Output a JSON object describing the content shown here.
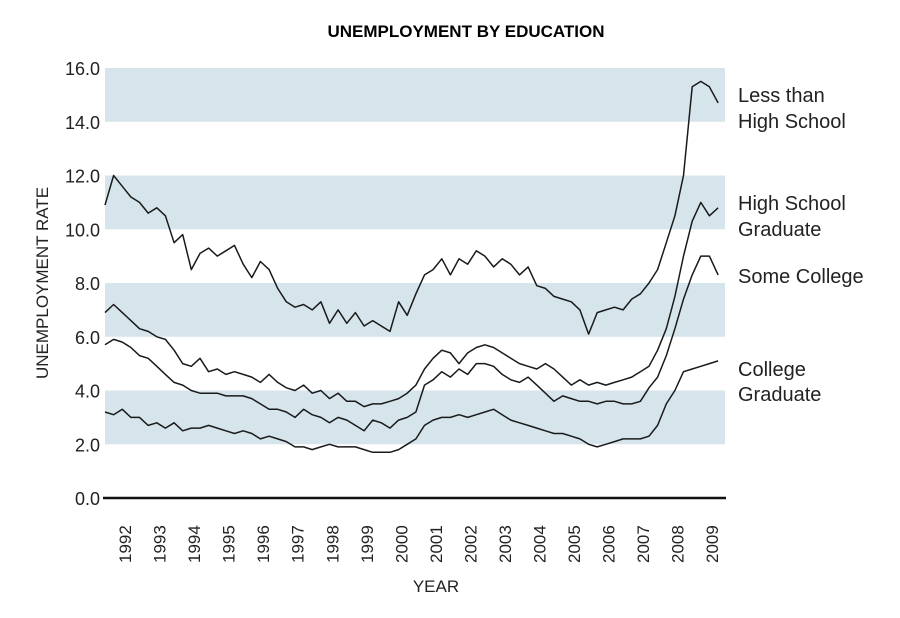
{
  "chart_data": {
    "type": "line",
    "title": "UNEMPLOYMENT BY EDUCATION",
    "xlabel": "YEAR",
    "ylabel": "UNEMPLOYMENT RATE",
    "ylim": [
      0,
      16
    ],
    "yticks": [
      "0.0",
      "2.0",
      "4.0",
      "6.0",
      "8.0",
      "10.0",
      "12.0",
      "14.0",
      "16.0"
    ],
    "xticks": [
      "1992",
      "1993",
      "1994",
      "1995",
      "1996",
      "1997",
      "1998",
      "1999",
      "2000",
      "2001",
      "2002",
      "2003",
      "2004",
      "2005",
      "2006",
      "2007",
      "2008",
      "2009"
    ],
    "bands": [
      [
        2,
        4
      ],
      [
        6,
        8
      ],
      [
        10,
        12
      ],
      [
        14,
        16
      ]
    ],
    "band_color": "#d6e4ec",
    "line_color": "#1a1a1a",
    "x_start": 1992.0,
    "x_step": 0.25,
    "series": [
      {
        "name": "Less than High School",
        "label_lines": [
          "Less than",
          "High School"
        ],
        "values": [
          10.9,
          12.0,
          11.6,
          11.2,
          11.0,
          10.6,
          10.8,
          10.5,
          9.5,
          9.8,
          8.5,
          9.1,
          9.3,
          9.0,
          9.2,
          9.4,
          8.7,
          8.2,
          8.8,
          8.5,
          7.8,
          7.3,
          7.1,
          7.2,
          7.0,
          7.3,
          6.5,
          7.0,
          6.5,
          6.9,
          6.4,
          6.6,
          6.4,
          6.2,
          7.3,
          6.8,
          7.6,
          8.3,
          8.5,
          8.9,
          8.3,
          8.9,
          8.7,
          9.2,
          9.0,
          8.6,
          8.9,
          8.7,
          8.3,
          8.6,
          7.9,
          7.8,
          7.5,
          7.4,
          7.3,
          7.0,
          6.1,
          6.9,
          7.0,
          7.1,
          7.0,
          7.4,
          7.6,
          8.0,
          8.5,
          9.5,
          10.5,
          12.0,
          15.3,
          15.5,
          15.3,
          14.7
        ]
      },
      {
        "name": "High School Graduate",
        "label_lines": [
          "High School",
          "Graduate"
        ],
        "values": [
          6.9,
          7.2,
          6.9,
          6.6,
          6.3,
          6.2,
          6.0,
          5.9,
          5.5,
          5.0,
          4.9,
          5.2,
          4.7,
          4.8,
          4.6,
          4.7,
          4.6,
          4.5,
          4.3,
          4.6,
          4.3,
          4.1,
          4.0,
          4.2,
          3.9,
          4.0,
          3.7,
          3.9,
          3.6,
          3.6,
          3.4,
          3.5,
          3.5,
          3.6,
          3.7,
          3.9,
          4.2,
          4.8,
          5.2,
          5.5,
          5.4,
          5.0,
          5.4,
          5.6,
          5.7,
          5.6,
          5.4,
          5.2,
          5.0,
          4.9,
          4.8,
          5.0,
          4.8,
          4.5,
          4.2,
          4.4,
          4.2,
          4.3,
          4.2,
          4.3,
          4.4,
          4.5,
          4.7,
          4.9,
          5.5,
          6.3,
          7.5,
          9.0,
          10.3,
          11.0,
          10.5,
          10.8
        ]
      },
      {
        "name": "Some College",
        "label_lines": [
          "Some College"
        ],
        "values": [
          5.7,
          5.9,
          5.8,
          5.6,
          5.3,
          5.2,
          4.9,
          4.6,
          4.3,
          4.2,
          4.0,
          3.9,
          3.9,
          3.9,
          3.8,
          3.8,
          3.8,
          3.7,
          3.5,
          3.3,
          3.3,
          3.2,
          3.0,
          3.3,
          3.1,
          3.0,
          2.8,
          3.0,
          2.9,
          2.7,
          2.5,
          2.9,
          2.8,
          2.6,
          2.9,
          3.0,
          3.2,
          4.2,
          4.4,
          4.7,
          4.5,
          4.8,
          4.6,
          5.0,
          5.0,
          4.9,
          4.6,
          4.4,
          4.3,
          4.5,
          4.2,
          3.9,
          3.6,
          3.8,
          3.7,
          3.6,
          3.6,
          3.5,
          3.6,
          3.6,
          3.5,
          3.5,
          3.6,
          4.1,
          4.5,
          5.3,
          6.3,
          7.4,
          8.3,
          9.0,
          9.0,
          8.3
        ]
      },
      {
        "name": "College Graduate",
        "label_lines": [
          "College",
          "Graduate"
        ],
        "values": [
          3.2,
          3.1,
          3.3,
          3.0,
          3.0,
          2.7,
          2.8,
          2.6,
          2.8,
          2.5,
          2.6,
          2.6,
          2.7,
          2.6,
          2.5,
          2.4,
          2.5,
          2.4,
          2.2,
          2.3,
          2.2,
          2.1,
          1.9,
          1.9,
          1.8,
          1.9,
          2.0,
          1.9,
          1.9,
          1.9,
          1.8,
          1.7,
          1.7,
          1.7,
          1.8,
          2.0,
          2.2,
          2.7,
          2.9,
          3.0,
          3.0,
          3.1,
          3.0,
          3.1,
          3.2,
          3.3,
          3.1,
          2.9,
          2.8,
          2.7,
          2.6,
          2.5,
          2.4,
          2.4,
          2.3,
          2.2,
          2.0,
          1.9,
          2.0,
          2.1,
          2.2,
          2.2,
          2.2,
          2.3,
          2.7,
          3.5,
          4.0,
          4.7,
          4.8,
          4.9,
          5.0,
          5.1
        ]
      }
    ],
    "grid": false,
    "legend": "inline-right"
  }
}
